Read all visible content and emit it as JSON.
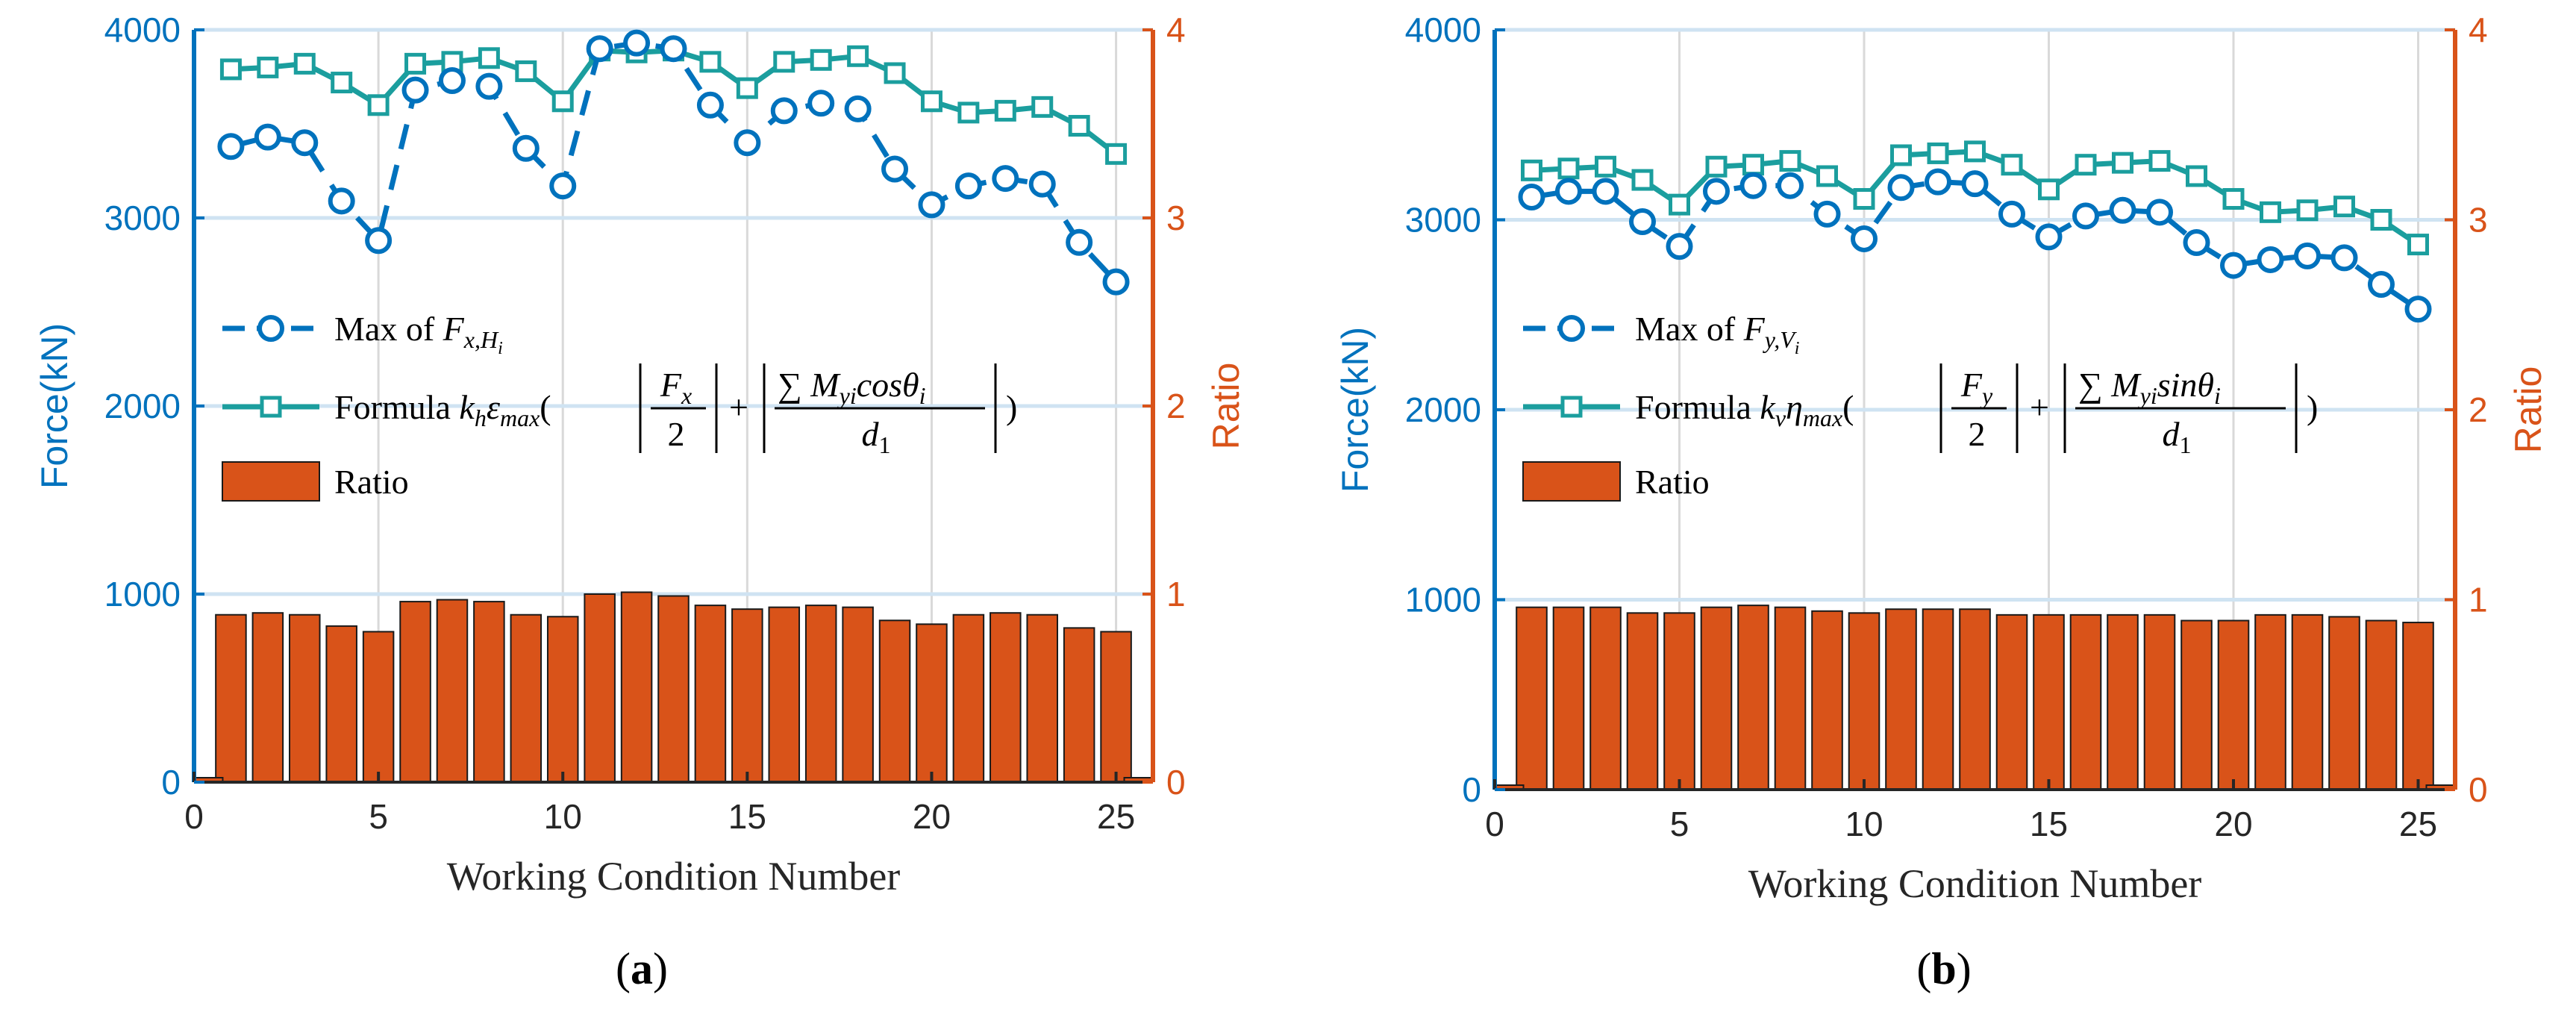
{
  "colors": {
    "blue": "#0072BD",
    "teal": "#1B9E9E",
    "orange": "#D95319",
    "grid": "#d9d9d9",
    "axis": "#262626"
  },
  "chart_data": [
    {
      "id": "a",
      "type": "bar+line",
      "sublabel_open": "(",
      "sublabel_letter": "a",
      "sublabel_close": ")",
      "xlabel": "Working Condition Number",
      "ylabel_left": "Force(kN)",
      "ylabel_right": "Ratio",
      "xlim": [
        0,
        26
      ],
      "ylim_left": [
        0,
        4000
      ],
      "ylim_right": [
        0,
        4
      ],
      "xticks": [
        "0",
        "5",
        "10",
        "15",
        "20",
        "25"
      ],
      "yticks_left": [
        "0",
        "1000",
        "2000",
        "3000",
        "4000"
      ],
      "yticks_right": [
        "0",
        "1",
        "2",
        "3",
        "4"
      ],
      "x": [
        1,
        2,
        3,
        4,
        5,
        6,
        7,
        8,
        9,
        10,
        11,
        12,
        13,
        14,
        15,
        16,
        17,
        18,
        19,
        20,
        21,
        22,
        23,
        24,
        25
      ],
      "series": [
        {
          "name": "Max of F_{x,H_i}",
          "axis": "left",
          "style": "dashed-circle",
          "values": [
            3380,
            3430,
            3400,
            3090,
            2880,
            3680,
            3730,
            3700,
            3370,
            3170,
            3900,
            3930,
            3900,
            3600,
            3400,
            3570,
            3610,
            3580,
            3260,
            3070,
            3170,
            3210,
            3180,
            2870,
            2660
          ]
        },
        {
          "name": "Formula",
          "axis": "left",
          "style": "solid-square",
          "values": [
            3790,
            3800,
            3820,
            3720,
            3600,
            3820,
            3830,
            3850,
            3780,
            3620,
            3890,
            3880,
            3890,
            3830,
            3690,
            3830,
            3840,
            3860,
            3770,
            3620,
            3560,
            3570,
            3590,
            3490,
            3340
          ]
        },
        {
          "name": "Ratio",
          "axis": "right",
          "style": "bar",
          "values": [
            0.89,
            0.9,
            0.89,
            0.83,
            0.8,
            0.96,
            0.97,
            0.96,
            0.89,
            0.88,
            1.0,
            1.01,
            0.99,
            0.94,
            0.92,
            0.93,
            0.94,
            0.93,
            0.86,
            0.84,
            0.89,
            0.9,
            0.89,
            0.82,
            0.8
          ]
        }
      ],
      "legend": {
        "max_prefix": "Max of ",
        "max_var": "F",
        "max_sub": "x,H",
        "max_subsub": "i",
        "formula_prefix": "Formula",
        "formula_expr": "k_h ε_max ( | F_x / 2 | + | ∑ M_yi cosθ_i / d_1 | )",
        "formula_k": "k",
        "formula_k_sub": "h",
        "formula_coef": "ε",
        "formula_coef_sub": "max",
        "frac1_num": "F",
        "frac1_num_sub": "x",
        "frac1_den": "2",
        "frac2_sum": "∑",
        "frac2_M": "M",
        "frac2_M_sub": "yi",
        "frac2_trig": "cos",
        "frac2_theta": "θ",
        "frac2_theta_sub": "i",
        "frac2_den": "d",
        "frac2_den_sub": "1",
        "ratio": "Ratio"
      }
    },
    {
      "id": "b",
      "type": "bar+line",
      "sublabel_open": "(",
      "sublabel_letter": "b",
      "sublabel_close": ")",
      "xlabel": "Working Condition Number",
      "ylabel_left": "Force(kN)",
      "ylabel_right": "Ratio",
      "xlim": [
        0,
        26
      ],
      "ylim_left": [
        0,
        4000
      ],
      "ylim_right": [
        0,
        4
      ],
      "xticks": [
        "0",
        "5",
        "10",
        "15",
        "20",
        "25"
      ],
      "yticks_left": [
        "0",
        "1000",
        "2000",
        "3000",
        "4000"
      ],
      "yticks_right": [
        "0",
        "1",
        "2",
        "3",
        "4"
      ],
      "x": [
        1,
        2,
        3,
        4,
        5,
        6,
        7,
        8,
        9,
        10,
        11,
        12,
        13,
        14,
        15,
        16,
        17,
        18,
        19,
        20,
        21,
        22,
        23,
        24,
        25
      ],
      "series": [
        {
          "name": "Max of F_{y,V_i}",
          "axis": "left",
          "style": "dashed-circle",
          "values": [
            3120,
            3150,
            3150,
            2990,
            2860,
            3150,
            3180,
            3180,
            3030,
            2900,
            3170,
            3200,
            3190,
            3030,
            2910,
            3020,
            3050,
            3040,
            2880,
            2760,
            2790,
            2810,
            2800,
            2660,
            2530
          ]
        },
        {
          "name": "Formula",
          "axis": "left",
          "style": "solid-square",
          "values": [
            3260,
            3270,
            3280,
            3210,
            3080,
            3280,
            3290,
            3310,
            3230,
            3110,
            3340,
            3350,
            3360,
            3290,
            3160,
            3290,
            3300,
            3310,
            3230,
            3110,
            3040,
            3050,
            3070,
            3000,
            2870
          ]
        },
        {
          "name": "Ratio",
          "axis": "right",
          "style": "bar",
          "values": [
            0.96,
            0.96,
            0.96,
            0.93,
            0.93,
            0.96,
            0.97,
            0.96,
            0.94,
            0.93,
            0.95,
            0.95,
            0.95,
            0.92,
            0.92,
            0.92,
            0.92,
            0.92,
            0.89,
            0.89,
            0.92,
            0.92,
            0.91,
            0.89,
            0.88
          ]
        }
      ],
      "legend": {
        "max_prefix": "Max of ",
        "max_var": "F",
        "max_sub": "y,V",
        "max_subsub": "i",
        "formula_prefix": "Formula",
        "formula_expr": "k_v η_max ( | F_y / 2 | + | ∑ M_yi sinθ_i / d_1 | )",
        "formula_k": "k",
        "formula_k_sub": "v",
        "formula_coef": "η",
        "formula_coef_sub": "max",
        "frac1_num": "F",
        "frac1_num_sub": "y",
        "frac1_den": "2",
        "frac2_sum": "∑",
        "frac2_M": "M",
        "frac2_M_sub": "yi",
        "frac2_trig": "sin",
        "frac2_theta": "θ",
        "frac2_theta_sub": "i",
        "frac2_den": "d",
        "frac2_den_sub": "1",
        "ratio": "Ratio"
      }
    }
  ]
}
